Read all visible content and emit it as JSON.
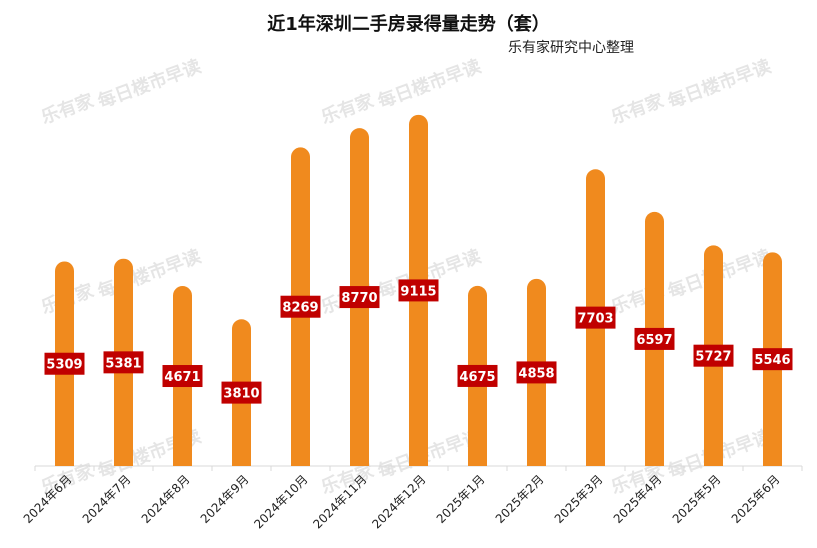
{
  "chart_data": {
    "type": "bar",
    "title": "近1年深圳二手房录得量走势（套）",
    "subtitle": "乐有家研究中心整理",
    "xlabel": "",
    "ylabel": "",
    "ylim": [
      0,
      9500
    ],
    "grid": false,
    "legend": "none",
    "categories": [
      "2024年6月",
      "2024年7月",
      "2024年8月",
      "2024年9月",
      "2024年10月",
      "2024年11月",
      "2024年12月",
      "2025年1月",
      "2025年2月",
      "2025年3月",
      "2025年4月",
      "2025年5月",
      "2025年6月"
    ],
    "values": [
      5309,
      5381,
      4671,
      3810,
      8269,
      8770,
      9115,
      4675,
      4858,
      7703,
      6597,
      5727,
      5546
    ],
    "bar_color": "#F08A1E",
    "label_color": "#C00000"
  },
  "watermark": {
    "brand": "乐有家",
    "text": "每日楼市早读"
  }
}
